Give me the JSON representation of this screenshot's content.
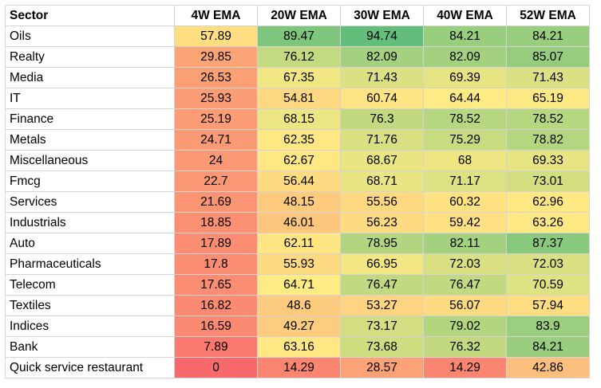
{
  "chart_data": {
    "type": "heatmap",
    "columns": [
      "Sector",
      "4W EMA",
      "20W EMA",
      "30W EMA",
      "40W EMA",
      "52W EMA"
    ],
    "rows": [
      {
        "sector": "Oils",
        "values": [
          "57.89",
          "89.47",
          "94.74",
          "84.21",
          "84.21"
        ]
      },
      {
        "sector": "Realty",
        "values": [
          "29.85",
          "76.12",
          "82.09",
          "82.09",
          "85.07"
        ]
      },
      {
        "sector": "Media",
        "values": [
          "26.53",
          "67.35",
          "71.43",
          "69.39",
          "71.43"
        ]
      },
      {
        "sector": "IT",
        "values": [
          "25.93",
          "54.81",
          "60.74",
          "64.44",
          "65.19"
        ]
      },
      {
        "sector": "Finance",
        "values": [
          "25.19",
          "68.15",
          "76.3",
          "78.52",
          "78.52"
        ]
      },
      {
        "sector": "Metals",
        "values": [
          "24.71",
          "62.35",
          "71.76",
          "75.29",
          "78.82"
        ]
      },
      {
        "sector": "Miscellaneous",
        "values": [
          "24",
          "62.67",
          "68.67",
          "68",
          "69.33"
        ]
      },
      {
        "sector": "Fmcg",
        "values": [
          "22.7",
          "56.44",
          "68.71",
          "71.17",
          "73.01"
        ]
      },
      {
        "sector": "Services",
        "values": [
          "21.69",
          "48.15",
          "55.56",
          "60.32",
          "62.96"
        ]
      },
      {
        "sector": "Industrials",
        "values": [
          "18.85",
          "46.01",
          "56.23",
          "59.42",
          "63.26"
        ]
      },
      {
        "sector": "Auto",
        "values": [
          "17.89",
          "62.11",
          "78.95",
          "82.11",
          "87.37"
        ]
      },
      {
        "sector": "Pharmaceuticals",
        "values": [
          "17.8",
          "55.93",
          "66.95",
          "72.03",
          "72.03"
        ]
      },
      {
        "sector": "Telecom",
        "values": [
          "17.65",
          "64.71",
          "76.47",
          "76.47",
          "70.59"
        ]
      },
      {
        "sector": "Textiles",
        "values": [
          "16.82",
          "48.6",
          "53.27",
          "56.07",
          "57.94"
        ]
      },
      {
        "sector": "Indices",
        "values": [
          "16.59",
          "49.27",
          "73.17",
          "79.02",
          "83.9"
        ]
      },
      {
        "sector": "Bank",
        "values": [
          "7.89",
          "63.16",
          "73.68",
          "76.32",
          "84.21"
        ]
      },
      {
        "sector": "Quick service restaurant",
        "values": [
          "0",
          "14.29",
          "28.57",
          "14.29",
          "42.86"
        ]
      }
    ],
    "color_scale": {
      "low": "#f8696b",
      "mid": "#ffeb84",
      "high": "#63be7b"
    }
  }
}
